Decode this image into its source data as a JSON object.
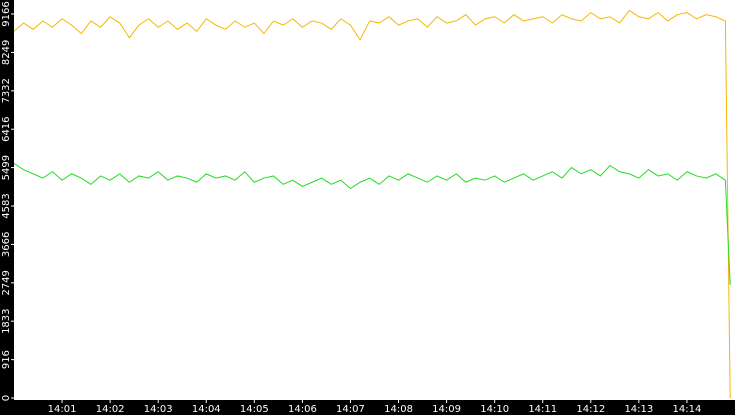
{
  "chart_data": {
    "type": "line",
    "x": [
      840,
      840.2,
      840.4,
      840.6,
      840.8,
      841,
      841.2,
      841.4,
      841.6,
      841.8,
      842,
      842.2,
      842.4,
      842.6,
      842.8,
      843,
      843.2,
      843.4,
      843.6,
      843.8,
      844,
      844.2,
      844.4,
      844.6,
      844.8,
      845,
      845.2,
      845.4,
      845.6,
      845.8,
      846,
      846.2,
      846.4,
      846.6,
      846.8,
      847,
      847.2,
      847.4,
      847.6,
      847.8,
      848,
      848.2,
      848.4,
      848.6,
      848.8,
      849,
      849.2,
      849.4,
      849.6,
      849.8,
      850,
      850.2,
      850.4,
      850.6,
      850.8,
      851,
      851.2,
      851.4,
      851.6,
      851.8,
      852,
      852.2,
      852.4,
      852.6,
      852.8,
      853,
      853.2,
      853.4,
      853.6,
      853.8,
      854,
      854.2,
      854.4,
      854.6,
      854.8,
      854.9
    ],
    "series": [
      {
        "color": "#f5b800",
        "values": [
          8750,
          8950,
          8800,
          9000,
          8850,
          9050,
          8900,
          8700,
          9000,
          8850,
          9100,
          8950,
          8600,
          8900,
          9050,
          8850,
          9000,
          8800,
          8950,
          8750,
          9050,
          8900,
          8800,
          9000,
          8850,
          8950,
          8700,
          9000,
          8900,
          9050,
          8850,
          9000,
          8950,
          8800,
          9050,
          8900,
          8550,
          9000,
          8950,
          9100,
          8900,
          9000,
          9050,
          8850,
          9100,
          8950,
          9000,
          9150,
          8900,
          9050,
          9100,
          8950,
          9150,
          9000,
          9050,
          9100,
          8950,
          9150,
          9050,
          9000,
          9200,
          9050,
          9100,
          8950,
          9250,
          9100,
          9050,
          9200,
          9000,
          9150,
          9200,
          9050,
          9150,
          9100,
          9000,
          0
        ]
      },
      {
        "color": "#22dd22",
        "values": [
          5600,
          5450,
          5350,
          5250,
          5400,
          5200,
          5350,
          5250,
          5100,
          5300,
          5200,
          5350,
          5150,
          5300,
          5250,
          5400,
          5200,
          5300,
          5250,
          5150,
          5350,
          5250,
          5300,
          5200,
          5400,
          5150,
          5250,
          5300,
          5100,
          5200,
          5050,
          5150,
          5250,
          5100,
          5200,
          5000,
          5150,
          5250,
          5100,
          5300,
          5200,
          5350,
          5250,
          5150,
          5300,
          5200,
          5350,
          5150,
          5250,
          5200,
          5300,
          5150,
          5250,
          5350,
          5200,
          5300,
          5400,
          5250,
          5500,
          5350,
          5450,
          5300,
          5550,
          5400,
          5350,
          5250,
          5450,
          5300,
          5350,
          5200,
          5400,
          5300,
          5250,
          5350,
          5200,
          2700
        ]
      }
    ],
    "xlim": [
      840,
      855
    ],
    "xticks": [
      {
        "value": 841,
        "label": "14:01"
      },
      {
        "value": 842,
        "label": "14:02"
      },
      {
        "value": 843,
        "label": "14:03"
      },
      {
        "value": 844,
        "label": "14:04"
      },
      {
        "value": 845,
        "label": "14:05"
      },
      {
        "value": 846,
        "label": "14:06"
      },
      {
        "value": 847,
        "label": "14:07"
      },
      {
        "value": 848,
        "label": "14:08"
      },
      {
        "value": 849,
        "label": "14:09"
      },
      {
        "value": 850,
        "label": "14:10"
      },
      {
        "value": 851,
        "label": "14:11"
      },
      {
        "value": 852,
        "label": "14:12"
      },
      {
        "value": 853,
        "label": "14:13"
      },
      {
        "value": 854,
        "label": "14:14"
      }
    ],
    "ylim": [
      0,
      9500
    ],
    "yticks": [
      0,
      916,
      1833,
      2749,
      3666,
      4583,
      5499,
      6416,
      7332,
      8249,
      9166
    ]
  }
}
